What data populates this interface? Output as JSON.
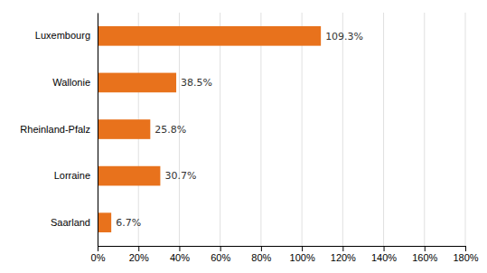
{
  "chart_data": {
    "type": "bar",
    "orientation": "horizontal",
    "categories": [
      "Saarland",
      "Lorraine",
      "Rheinland-Pfalz",
      "Wallonie",
      "Luxembourg"
    ],
    "values": [
      6.7,
      30.7,
      25.8,
      38.5,
      109.3
    ],
    "value_labels": [
      "6.7%",
      "30.7%",
      "25.8%",
      "38.5%",
      "109.3%"
    ],
    "data_labels": true,
    "color": "#E8721C",
    "xlim": [
      0,
      180
    ],
    "xticks": [
      {
        "value": 0,
        "label": "0%"
      },
      {
        "value": 20,
        "label": "20%"
      },
      {
        "value": 40,
        "label": "40%"
      },
      {
        "value": 60,
        "label": "60%"
      },
      {
        "value": 80,
        "label": "80%"
      },
      {
        "value": 100,
        "label": "100%"
      },
      {
        "value": 120,
        "label": "120%"
      },
      {
        "value": 140,
        "label": "140%"
      },
      {
        "value": 160,
        "label": "160%"
      },
      {
        "value": 180,
        "label": "180%"
      }
    ],
    "grid": true
  }
}
